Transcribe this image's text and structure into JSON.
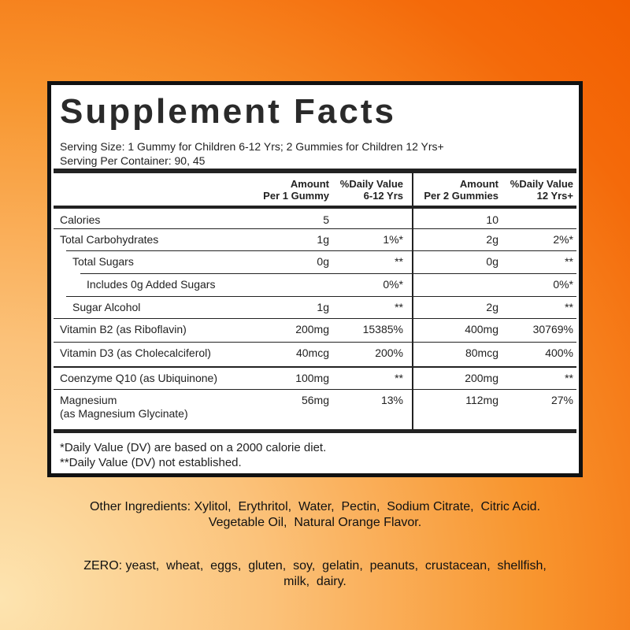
{
  "title": "Supplement Facts",
  "serving_size": "Serving Size: 1 Gummy for Children 6-12 Yrs; 2 Gummies for Children 12 Yrs+",
  "servings_per_container": "Serving Per Container: 90, 45",
  "table": {
    "headers": [
      [
        "Amount",
        "Per 1 Gummy"
      ],
      [
        "%Daily Value",
        "6-12 Yrs"
      ],
      [
        "Amount",
        "Per 2 Gummies"
      ],
      [
        "%Daily Value",
        "12 Yrs+"
      ]
    ],
    "rows": [
      {
        "name": "Calories",
        "amount_1": "5",
        "amount_2": "10"
      },
      {
        "name": "Total Carbohydrates",
        "amount_1": "1g",
        "dv_1": "1%*",
        "amount_2": "2g",
        "dv_2": "2%*"
      },
      {
        "name": "Total Sugars",
        "amount_1": "0g",
        "dv_1": "**",
        "amount_2": "0g",
        "dv_2": "**"
      },
      {
        "name": "Includes 0g Added Sugars",
        "dv_1": "0%*",
        "dv_2": "0%*"
      },
      {
        "name": "Sugar Alcohol",
        "amount_1": "1g",
        "dv_1": "**",
        "amount_2": "2g",
        "dv_2": "**"
      },
      {
        "name": "Vitamin B2 (as Riboflavin)",
        "amount_1": "200mg",
        "dv_1": "15385%",
        "amount_2": "400mg",
        "dv_2": "30769%"
      },
      {
        "name": "Vitamin D3 (as Cholecalciferol)",
        "amount_1": "40mcg",
        "dv_1": "200%",
        "amount_2": "80mcg",
        "dv_2": "400%"
      },
      {
        "name": "Coenzyme Q10 (as Ubiquinone)",
        "amount_1": "100mg",
        "dv_1": "**",
        "amount_2": "200mg",
        "dv_2": "**"
      },
      {
        "name": "Magnesium",
        "name_note": "(as Magnesium Glycinate)",
        "amount_1": "56mg",
        "dv_1": "13%",
        "amount_2": "112mg",
        "dv_2": "27%"
      }
    ]
  },
  "footnotes": [
    "*Daily Value (DV) are based on a 2000 calorie diet.",
    "**Daily Value (DV) not established."
  ],
  "other_ingredients": [
    "Other Ingredients: Xylitol,  Erythritol,  Water,  Pectin,  Sodium Citrate,  Citric Acid.",
    "Vegetable Oil,  Natural Orange Flavor."
  ],
  "zero": [
    "ZERO: yeast,  wheat,  eggs,  gluten,  soy,  gelatin,  peanuts,  crustacean,  shellfish,",
    "milk,  dairy."
  ]
}
